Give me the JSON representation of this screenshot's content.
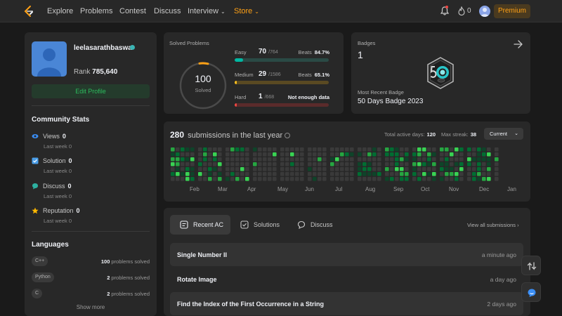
{
  "nav": {
    "links": [
      "Explore",
      "Problems",
      "Contest",
      "Discuss",
      "Interview",
      "Store"
    ],
    "streak_count": "0",
    "premium_label": "Premium"
  },
  "profile": {
    "username": "leelasarathbaswa",
    "rank_label": "Rank",
    "rank_value": "785,640",
    "edit_label": "Edit Profile",
    "community_title": "Community Stats",
    "stats": [
      {
        "label": "Views",
        "value": "0",
        "sub": "Last week 0",
        "icon": "eye-icon",
        "color": "#3a8ef6"
      },
      {
        "label": "Solution",
        "value": "0",
        "sub": "Last week 0",
        "icon": "solution-check-icon",
        "color": "#4a9ee8"
      },
      {
        "label": "Discuss",
        "value": "0",
        "sub": "Last week 0",
        "icon": "discuss-bubble-icon",
        "color": "#2db0a0"
      },
      {
        "label": "Reputation",
        "value": "0",
        "sub": "Last week 0",
        "icon": "star-icon",
        "color": "#ffb800"
      }
    ],
    "languages_title": "Languages",
    "languages": [
      {
        "name": "C++",
        "count": "100",
        "suffix": "problems solved"
      },
      {
        "name": "Python",
        "count": "2",
        "suffix": "problems solved"
      },
      {
        "name": "C",
        "count": "2",
        "suffix": "problems solved"
      }
    ],
    "show_more": "Show more"
  },
  "solved": {
    "title": "Solved Problems",
    "total": "100",
    "total_label": "Solved",
    "difficulties": [
      {
        "name": "Easy",
        "count": "70",
        "total": "/764",
        "beats_label": "Beats",
        "beats": "84.7%",
        "fraction": 0.0916,
        "color": "#00b8a3",
        "track": "#2a4a45"
      },
      {
        "name": "Medium",
        "count": "29",
        "total": "/1586",
        "beats_label": "Beats",
        "beats": "65.1%",
        "fraction": 0.0183,
        "color": "#ffc01e",
        "track": "#5a4a22"
      },
      {
        "name": "Hard",
        "count": "1",
        "total": "/668",
        "beats_label": "",
        "beats": "Not enough data",
        "fraction": 0.0015,
        "color": "#ef4743",
        "track": "#5a2b2b"
      }
    ]
  },
  "badges": {
    "title": "Badges",
    "count": "1",
    "recent_label": "Most Recent Badge",
    "recent_name": "50 Days Badge 2023"
  },
  "heatmap": {
    "count": "280",
    "title": "submissions in the last year",
    "active_label": "Total active days:",
    "active_value": "120",
    "streak_label": "Max streak:",
    "streak_value": "38",
    "dropdown": "Current",
    "months": [
      "Feb",
      "Mar",
      "Apr",
      "May",
      "Jun",
      "Jul",
      "Aug",
      "Sep",
      "Oct",
      "Nov",
      "Dec",
      "Jan"
    ]
  },
  "submissions": {
    "tabs": [
      "Recent AC",
      "Solutions",
      "Discuss"
    ],
    "view_all": "View all submissions",
    "rows": [
      {
        "title": "Single Number II",
        "time": "a minute ago"
      },
      {
        "title": "Rotate Image",
        "time": "a day ago"
      },
      {
        "title": "Find the Index of the First Occurrence in a String",
        "time": "2 days ago"
      }
    ]
  }
}
